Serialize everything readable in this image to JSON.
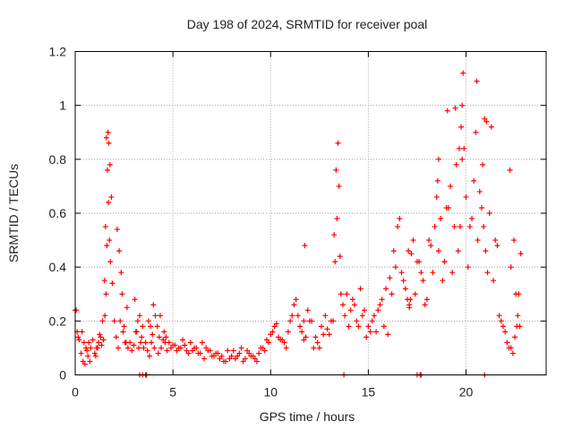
{
  "chart_data": {
    "type": "scatter",
    "title": "Day 198 of 2024, SRMTID for receiver poal",
    "xlabel": "GPS time / hours",
    "ylabel": "SRMTID / TECUs",
    "xlim": [
      0,
      24.1
    ],
    "ylim": [
      0,
      1.2
    ],
    "xticks": [
      0,
      5,
      10,
      15,
      20
    ],
    "xtick_labels": [
      "0",
      "5",
      "10",
      "15",
      "20"
    ],
    "yticks": [
      0,
      0.2,
      0.4,
      0.6,
      0.8,
      1,
      1.2
    ],
    "ytick_labels": [
      "0",
      "0.2",
      "0.4",
      "0.6",
      "0.8",
      "1",
      "1.2"
    ],
    "grid": true,
    "marker": "+",
    "series": [
      {
        "name": "SRMTID",
        "color": "#ff0000",
        "x": [
          0.0,
          0.1,
          0.2,
          0.3,
          0.4,
          0.5,
          0.6,
          0.7,
          0.8,
          0.9,
          1.0,
          1.1,
          1.2,
          1.3,
          1.4,
          1.5,
          1.55,
          1.6,
          1.65,
          1.7,
          1.75,
          1.8,
          1.9,
          2.0,
          2.1,
          2.2,
          2.3,
          2.4,
          2.5,
          2.6,
          2.7,
          2.8,
          2.9,
          3.0,
          3.1,
          3.2,
          3.3,
          3.4,
          3.5,
          3.6,
          3.7,
          3.8,
          3.9,
          4.0,
          4.1,
          4.2,
          4.3,
          4.4,
          4.5,
          4.6,
          4.7,
          4.8,
          4.9,
          5.0,
          5.2,
          5.4,
          5.6,
          5.8,
          6.0,
          6.2,
          6.4,
          6.6,
          6.8,
          7.0,
          7.2,
          7.4,
          7.6,
          7.8,
          8.0,
          8.2,
          8.4,
          8.6,
          8.8,
          9.0,
          9.2,
          9.4,
          9.6,
          9.8,
          10.0,
          10.2,
          10.4,
          10.6,
          10.8,
          11.0,
          11.2,
          11.4,
          11.6,
          11.8,
          12.0,
          12.2,
          12.4,
          12.6,
          12.8,
          13.0,
          13.2,
          13.3,
          13.4,
          13.5,
          13.6,
          13.8,
          14.0,
          14.2,
          14.4,
          14.6,
          14.8,
          15.0,
          15.2,
          15.4,
          15.6,
          15.8,
          16.0,
          16.2,
          16.4,
          16.6,
          16.8,
          17.0,
          17.2,
          17.4,
          17.6,
          17.8,
          18.0,
          18.2,
          18.4,
          18.6,
          18.8,
          19.0,
          19.2,
          19.4,
          19.6,
          19.8,
          20.0,
          20.2,
          20.4,
          20.6,
          20.8,
          21.0,
          21.2,
          21.4,
          21.6,
          21.8,
          22.0,
          22.2,
          22.4,
          22.6,
          22.8,
          0.05,
          0.15,
          0.35,
          0.45,
          0.55,
          0.65,
          0.75,
          1.05,
          1.15,
          1.25,
          1.35,
          1.45,
          1.52,
          1.58,
          1.62,
          1.68,
          1.72,
          1.78,
          1.85,
          2.15,
          2.25,
          2.35,
          2.45,
          2.55,
          2.65,
          3.05,
          3.15,
          3.25,
          3.35,
          3.45,
          3.75,
          3.85,
          3.95,
          4.05,
          4.25,
          4.35,
          4.55,
          4.65,
          5.1,
          5.3,
          5.5,
          5.7,
          5.9,
          6.1,
          6.3,
          6.5,
          6.7,
          6.9,
          7.1,
          7.3,
          7.5,
          7.7,
          7.9,
          8.1,
          8.3,
          8.5,
          8.7,
          8.9,
          9.1,
          9.3,
          9.5,
          9.7,
          9.9,
          10.1,
          10.3,
          10.5,
          10.7,
          10.9,
          11.1,
          11.3,
          11.5,
          11.7,
          11.9,
          12.1,
          12.3,
          12.5,
          12.7,
          12.9,
          13.1,
          13.25,
          13.35,
          13.45,
          13.55,
          13.7,
          13.9,
          14.1,
          14.3,
          14.5,
          14.7,
          14.9,
          15.1,
          15.3,
          15.5,
          15.7,
          15.9,
          16.1,
          16.3,
          16.5,
          16.7,
          16.9,
          17.1,
          17.3,
          17.5,
          17.7,
          17.9,
          18.1,
          18.3,
          18.5,
          18.7,
          18.9,
          19.1,
          19.3,
          19.5,
          19.7,
          19.9,
          20.1,
          20.3,
          20.5,
          20.7,
          20.9,
          21.1,
          21.3,
          21.5,
          21.7,
          21.9,
          22.1,
          22.3,
          22.5,
          22.7,
          11.7,
          11.75,
          17.05,
          17.1,
          17.15,
          18.55,
          18.6,
          18.9,
          19.05,
          19.45,
          19.65,
          19.75,
          19.8,
          19.85,
          20.55,
          20.85,
          20.95,
          21.05,
          22.25,
          22.3,
          22.45,
          22.55,
          22.65,
          22.75,
          3.3,
          3.45,
          3.6,
          3.65,
          13.75,
          17.5,
          17.65,
          17.7,
          20.95
        ],
        "y": [
          0.24,
          0.16,
          0.13,
          0.08,
          0.05,
          0.04,
          0.09,
          0.12,
          0.1,
          0.13,
          0.08,
          0.1,
          0.12,
          0.14,
          0.2,
          0.35,
          0.55,
          0.88,
          0.76,
          0.64,
          0.5,
          0.42,
          0.34,
          0.2,
          0.14,
          0.1,
          0.2,
          0.3,
          0.18,
          0.12,
          0.1,
          0.12,
          0.09,
          0.11,
          0.16,
          0.2,
          0.22,
          0.14,
          0.1,
          0.12,
          0.09,
          0.07,
          0.12,
          0.26,
          0.22,
          0.18,
          0.14,
          0.1,
          0.13,
          0.12,
          0.09,
          0.12,
          0.1,
          0.11,
          0.09,
          0.1,
          0.11,
          0.08,
          0.09,
          0.1,
          0.08,
          0.06,
          0.09,
          0.07,
          0.08,
          0.06,
          0.05,
          0.09,
          0.07,
          0.06,
          0.08,
          0.05,
          0.09,
          0.07,
          0.06,
          0.08,
          0.1,
          0.13,
          0.15,
          0.18,
          0.14,
          0.13,
          0.1,
          0.2,
          0.26,
          0.22,
          0.16,
          0.14,
          0.2,
          0.1,
          0.12,
          0.18,
          0.22,
          0.15,
          0.2,
          0.42,
          0.58,
          0.7,
          0.3,
          0.22,
          0.18,
          0.28,
          0.2,
          0.32,
          0.24,
          0.18,
          0.2,
          0.16,
          0.26,
          0.18,
          0.15,
          0.3,
          0.4,
          0.58,
          0.35,
          0.28,
          0.45,
          0.3,
          0.42,
          0.35,
          0.28,
          0.48,
          0.55,
          0.46,
          0.35,
          0.62,
          0.7,
          0.55,
          0.46,
          0.8,
          0.66,
          0.55,
          0.72,
          0.5,
          0.62,
          0.46,
          0.6,
          0.35,
          0.48,
          0.2,
          0.16,
          0.1,
          0.08,
          0.18,
          0.45,
          0.24,
          0.14,
          0.16,
          0.12,
          0.1,
          0.07,
          0.05,
          0.07,
          0.1,
          0.15,
          0.11,
          0.13,
          0.22,
          0.3,
          0.48,
          0.9,
          0.86,
          0.78,
          0.66,
          0.54,
          0.46,
          0.38,
          0.16,
          0.12,
          0.25,
          0.28,
          0.16,
          0.1,
          0.12,
          0.18,
          0.2,
          0.18,
          0.15,
          0.1,
          0.08,
          0.22,
          0.16,
          0.14,
          0.11,
          0.1,
          0.13,
          0.09,
          0.12,
          0.1,
          0.08,
          0.12,
          0.1,
          0.09,
          0.07,
          0.08,
          0.07,
          0.05,
          0.06,
          0.09,
          0.07,
          0.1,
          0.06,
          0.08,
          0.07,
          0.05,
          0.1,
          0.09,
          0.12,
          0.16,
          0.19,
          0.13,
          0.12,
          0.16,
          0.22,
          0.28,
          0.18,
          0.13,
          0.24,
          0.2,
          0.14,
          0.1,
          0.15,
          0.17,
          0.2,
          0.52,
          0.76,
          0.86,
          0.44,
          0.26,
          0.3,
          0.24,
          0.26,
          0.18,
          0.22,
          0.14,
          0.16,
          0.22,
          0.24,
          0.28,
          0.32,
          0.36,
          0.46,
          0.55,
          0.38,
          0.32,
          0.25,
          0.5,
          0.42,
          0.38,
          0.26,
          0.5,
          0.38,
          0.66,
          0.58,
          0.42,
          0.62,
          0.38,
          0.78,
          0.55,
          0.84,
          0.4,
          0.58,
          0.9,
          0.68,
          0.55,
          0.38,
          0.92,
          0.5,
          0.22,
          0.18,
          0.12,
          0.1,
          0.14,
          0.3,
          0.2,
          0.48,
          0.46,
          0.26,
          0.28,
          0.72,
          0.8,
          0.42,
          0.98,
          0.99,
          0.84,
          0.92,
          1.0,
          1.12,
          1.09,
          0.78,
          0.95,
          0.94,
          0.76,
          0.4,
          0.5,
          0.3,
          0.22,
          0.18,
          0,
          0,
          0,
          0,
          0,
          0,
          0,
          0,
          0
        ]
      }
    ]
  }
}
